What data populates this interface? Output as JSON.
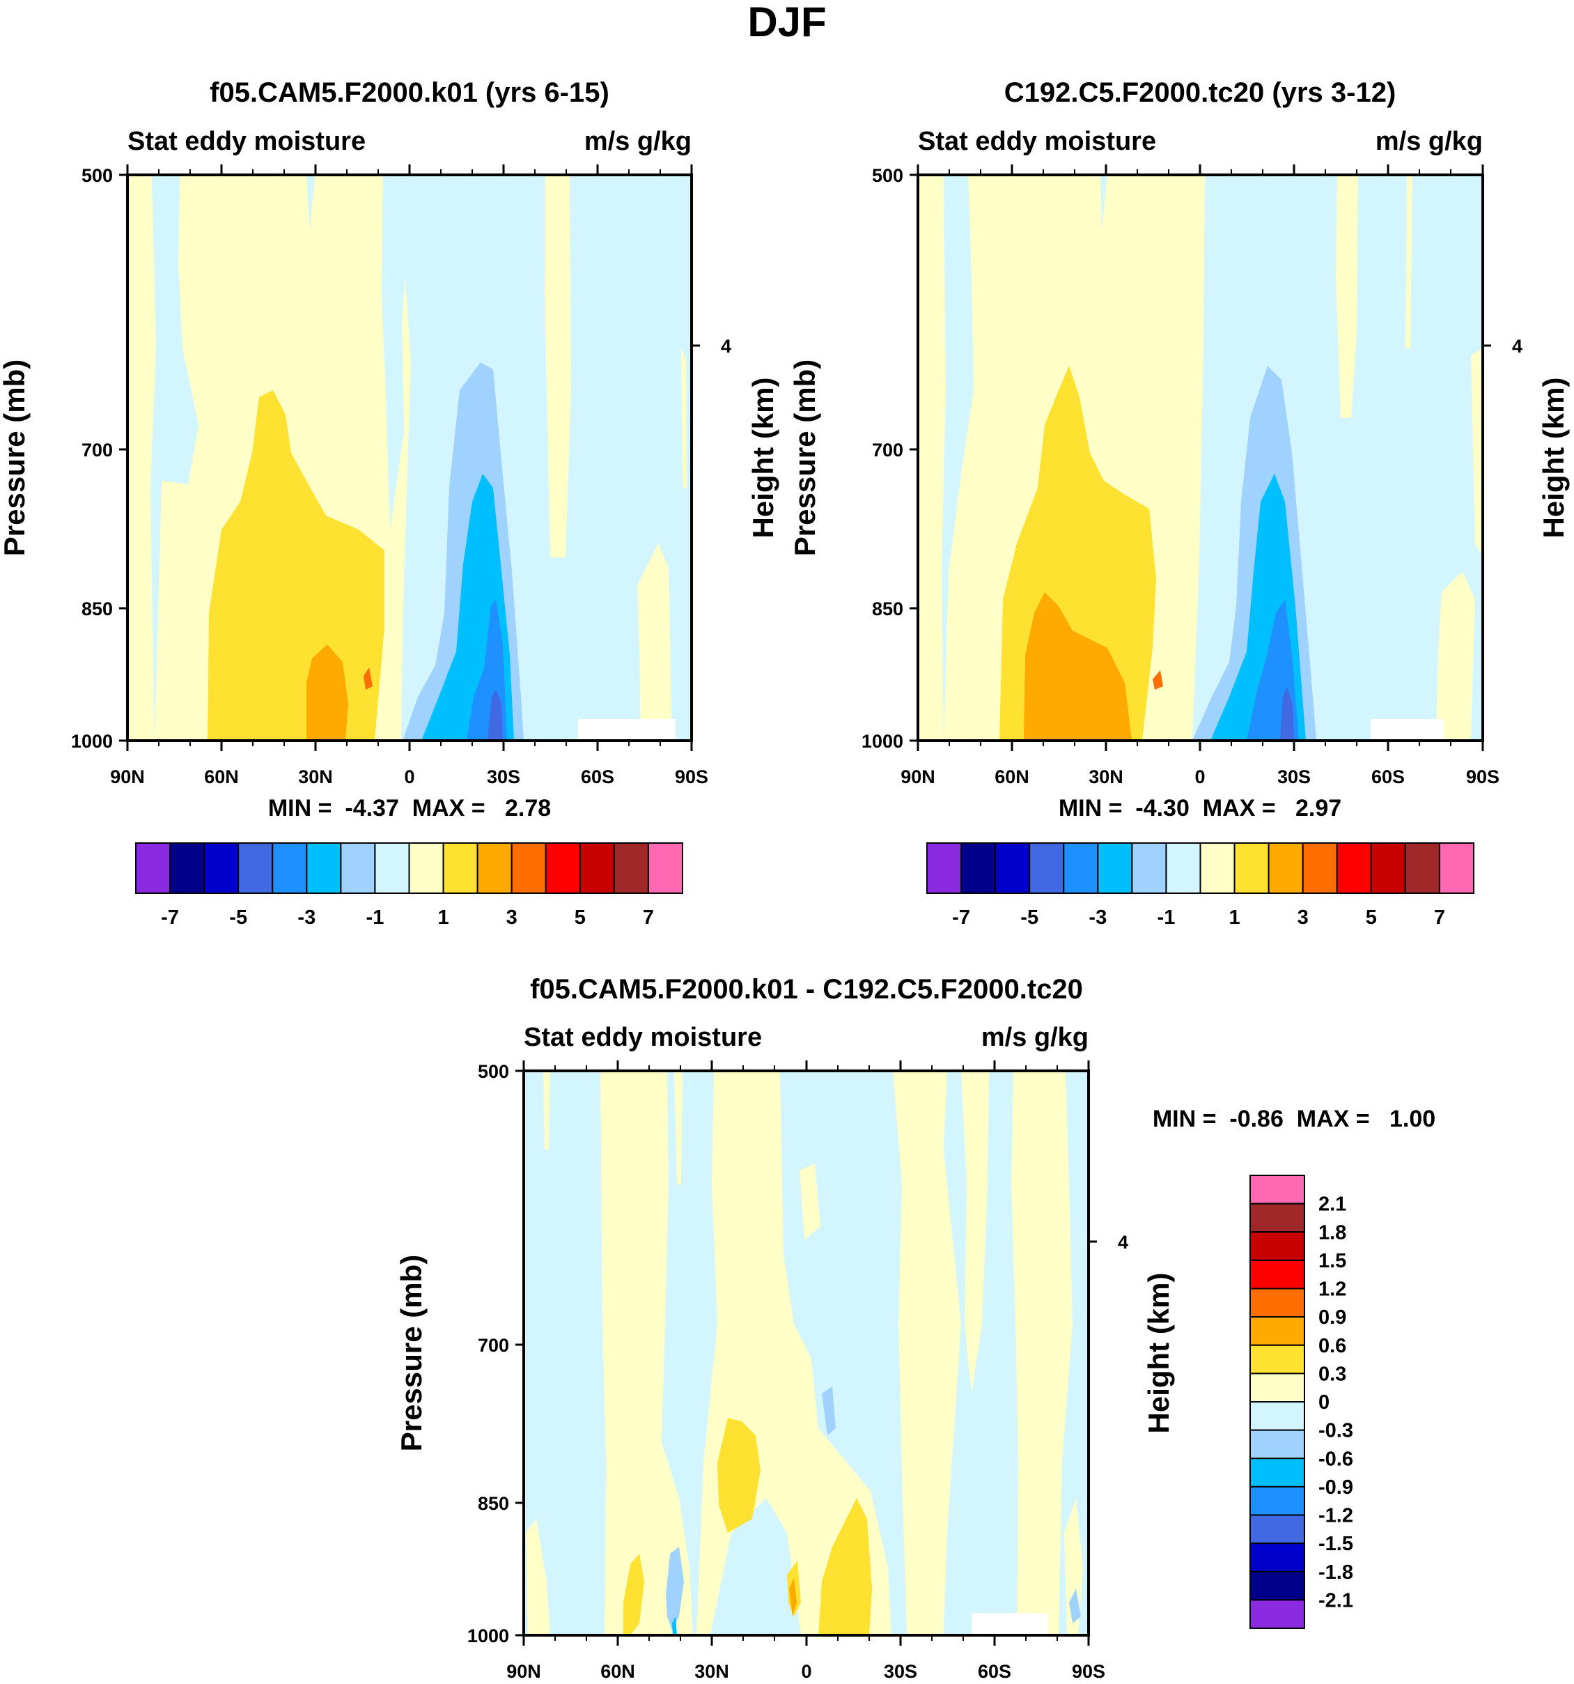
{
  "figure": {
    "title": "DJF",
    "colors": {
      "palette": [
        "#8a2be2",
        "#00008b",
        "#0000cd",
        "#4169e1",
        "#1e90ff",
        "#00bfff",
        "#a0d2ff",
        "#d2f5ff",
        "#ffffc8",
        "#ffe132",
        "#ffaa00",
        "#ff6e00",
        "#ff0000",
        "#c80000",
        "#a02828",
        "#ff69b4"
      ]
    }
  },
  "panels": [
    {
      "id": "p1",
      "title": "f05.CAM5.F2000.k01 (yrs 6-15)",
      "left_label": "Stat eddy moisture",
      "right_label": "m/s g/kg",
      "min_max": "MIN =  -4.37  MAX =   2.78"
    },
    {
      "id": "p2",
      "title": "C192.C5.F2000.tc20 (yrs 3-12)",
      "left_label": "Stat eddy moisture",
      "right_label": "m/s g/kg",
      "min_max": "MIN =  -4.30  MAX =   2.97"
    },
    {
      "id": "p3",
      "title": "f05.CAM5.F2000.k01 - C192.C5.F2000.tc20",
      "left_label": "Stat eddy moisture",
      "right_label": "m/s g/kg",
      "min_max": "MIN =  -0.86  MAX =   1.00"
    }
  ],
  "colorbars": {
    "main": {
      "labels": [
        "-7",
        "-5",
        "-3",
        "-1",
        "1",
        "3",
        "5",
        "7"
      ]
    },
    "diff": {
      "labels": [
        "2.1",
        "1.8",
        "1.5",
        "1.2",
        "0.9",
        "0.6",
        "0.3",
        "0",
        "-0.3",
        "-0.6",
        "-0.9",
        "-1.2",
        "-1.5",
        "-1.8",
        "-2.1"
      ]
    }
  },
  "chart_data": [
    {
      "type": "heatmap",
      "title": "f05.CAM5.F2000.k01 (yrs 6-15)",
      "subtitle_left": "Stat eddy moisture",
      "subtitle_right": "m/s g/kg",
      "xlabel": "",
      "ylabel": "Pressure (mb)",
      "ylabel_right": "Height (km)",
      "x_ticks": [
        "90N",
        "60N",
        "30N",
        "0",
        "30S",
        "60S",
        "90S"
      ],
      "y_ticks": [
        "500",
        "700",
        "850",
        "1000"
      ],
      "y_right_ticks": [
        "4"
      ],
      "xlim": [
        90,
        -90
      ],
      "ylim": [
        1000,
        500
      ],
      "min": -4.37,
      "max": 2.78,
      "levels": [
        -7,
        -6,
        -5,
        -4,
        -3,
        -2,
        -1,
        0,
        1,
        2,
        3,
        4,
        5,
        6,
        7
      ],
      "features": [
        {
          "sign": "positive",
          "peak": 2.78,
          "lat_range": [
            75,
            0
          ],
          "p_range": [
            650,
            1000
          ],
          "peak_lat": 30,
          "peak_p": 950
        },
        {
          "sign": "negative",
          "peak": -4.37,
          "lat_range": [
            0,
            -40
          ],
          "p_range": [
            600,
            1000
          ],
          "peak_lat": -25,
          "peak_p": 980
        }
      ]
    },
    {
      "type": "heatmap",
      "title": "C192.C5.F2000.tc20 (yrs 3-12)",
      "subtitle_left": "Stat eddy moisture",
      "subtitle_right": "m/s g/kg",
      "xlabel": "",
      "ylabel": "Pressure (mb)",
      "ylabel_right": "Height (km)",
      "x_ticks": [
        "90N",
        "60N",
        "30N",
        "0",
        "30S",
        "60S",
        "90S"
      ],
      "y_ticks": [
        "500",
        "700",
        "850",
        "1000"
      ],
      "y_right_ticks": [
        "4"
      ],
      "xlim": [
        90,
        -90
      ],
      "ylim": [
        1000,
        500
      ],
      "min": -4.3,
      "max": 2.97,
      "levels": [
        -7,
        -6,
        -5,
        -4,
        -3,
        -2,
        -1,
        0,
        1,
        2,
        3,
        4,
        5,
        6,
        7
      ],
      "features": [
        {
          "sign": "positive",
          "peak": 2.97,
          "lat_range": [
            75,
            0
          ],
          "p_range": [
            620,
            1000
          ],
          "peak_lat": 30,
          "peak_p": 950
        },
        {
          "sign": "negative",
          "peak": -4.3,
          "lat_range": [
            0,
            -40
          ],
          "p_range": [
            600,
            1000
          ],
          "peak_lat": -25,
          "peak_p": 980
        }
      ]
    },
    {
      "type": "heatmap",
      "title": "f05.CAM5.F2000.k01 - C192.C5.F2000.tc20",
      "subtitle_left": "Stat eddy moisture",
      "subtitle_right": "m/s g/kg",
      "xlabel": "",
      "ylabel": "Pressure (mb)",
      "ylabel_right": "Height (km)",
      "x_ticks": [
        "90N",
        "60N",
        "30N",
        "0",
        "30S",
        "60S",
        "90S"
      ],
      "y_ticks": [
        "500",
        "700",
        "850",
        "1000"
      ],
      "y_right_ticks": [
        "4"
      ],
      "xlim": [
        90,
        -90
      ],
      "ylim": [
        1000,
        500
      ],
      "min": -0.86,
      "max": 1.0,
      "levels": [
        -2.1,
        -1.8,
        -1.5,
        -1.2,
        -0.9,
        -0.6,
        -0.3,
        0,
        0.3,
        0.6,
        0.9,
        1.2,
        1.5,
        1.8,
        2.1
      ],
      "features": [
        {
          "sign": "positive",
          "peak": 0.6,
          "lat_range": [
            30,
            15
          ],
          "p_range": [
            780,
            980
          ]
        },
        {
          "sign": "positive",
          "peak": 0.6,
          "lat_range": [
            -5,
            -20
          ],
          "p_range": [
            880,
            1000
          ]
        },
        {
          "sign": "negative",
          "peak": -0.6,
          "lat_range": [
            40,
            30
          ],
          "p_range": [
            920,
            1000
          ]
        }
      ]
    }
  ]
}
